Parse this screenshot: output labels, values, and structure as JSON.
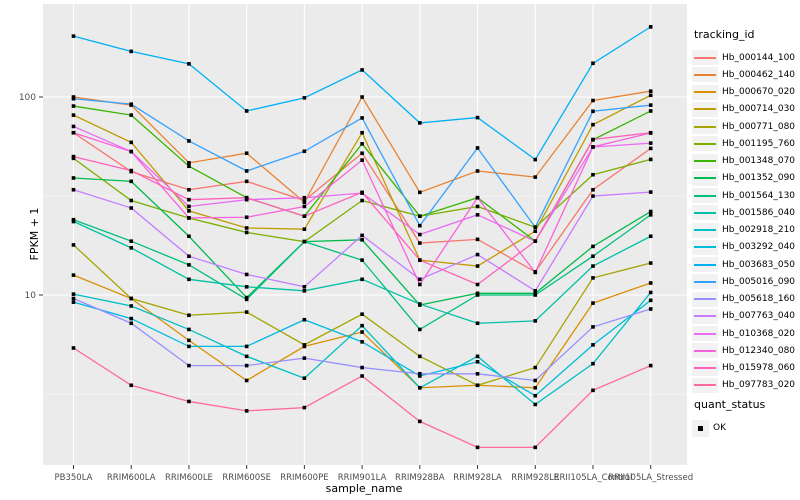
{
  "figure": {
    "background": "#FFFFFF",
    "panel_background": "#EBEBEB",
    "grid_color": "#FFFFFF",
    "tick_label_color": "#4D4D4D"
  },
  "axes": {
    "y_title": "FPKM + 1",
    "x_title": "sample_name",
    "y_tick_labels": [
      "100",
      "10"
    ]
  },
  "legend": {
    "tracking_title": "tracking_id",
    "quant_title": "quant_status",
    "quant_items": [
      {
        "label": "OK",
        "marker": "black-square"
      }
    ]
  },
  "chart_data": {
    "type": "line",
    "title": "",
    "xlabel": "sample_name",
    "ylabel": "FPKM + 1",
    "y_scale": "log10",
    "ylim": [
      1.5,
      320
    ],
    "y_major_ticks": [
      100,
      10
    ],
    "y_minor_ticks": [
      31.6,
      3.16
    ],
    "grid": true,
    "legend_position": "right",
    "point_marker": {
      "shape": "square",
      "color": "#000000",
      "meaning": "quant_status OK"
    },
    "categories": [
      "PB350LA",
      "RRIM600LA",
      "RRIM600LE",
      "RRIM600SE",
      "RRIM600PE",
      "RRIM901LA",
      "RRIM928BA",
      "RRIM928LA",
      "RRIM928LE",
      "RRII105LA_Control",
      "RRII105LA_Stressed"
    ],
    "series": [
      {
        "name": "Hb_000144_100",
        "color": "#F8766D",
        "values": [
          66,
          42,
          34,
          37.5,
          30,
          52,
          18.3,
          19.1,
          13.1,
          34,
          55
        ]
      },
      {
        "name": "Hb_000462_140",
        "color": "#EA8331",
        "values": [
          100,
          91,
          46.5,
          52,
          29.4,
          100,
          33,
          42.3,
          39.4,
          96,
          107
        ]
      },
      {
        "name": "Hb_000670_020",
        "color": "#D89000",
        "values": [
          12.6,
          9.6,
          5.9,
          3.7,
          5.5,
          6.5,
          3.4,
          3.5,
          3.4,
          9.1,
          11.5
        ]
      },
      {
        "name": "Hb_000714_030",
        "color": "#C09B00",
        "values": [
          81,
          59,
          26.6,
          21.8,
          21.5,
          66,
          15,
          14,
          21,
          72.5,
          102
        ]
      },
      {
        "name": "Hb_000771_080",
        "color": "#A3A500",
        "values": [
          17.9,
          9.6,
          7.9,
          8.2,
          5.6,
          8,
          4.9,
          3.5,
          4.3,
          12.2,
          14.5
        ]
      },
      {
        "name": "Hb_001195_760",
        "color": "#7CAE00",
        "values": [
          49,
          30,
          24.5,
          20.7,
          18.6,
          30,
          25,
          28,
          22,
          40.5,
          48.4
        ]
      },
      {
        "name": "Hb_001348_070",
        "color": "#39B600",
        "values": [
          90,
          81,
          44.7,
          31,
          25,
          58,
          25,
          31,
          18.7,
          60.8,
          85
        ]
      },
      {
        "name": "Hb_001352_090",
        "color": "#00BB4E",
        "values": [
          39,
          37.5,
          19.8,
          9.7,
          18.6,
          19,
          8.9,
          10.2,
          10.2,
          17.6,
          26.4
        ]
      },
      {
        "name": "Hb_001564_130",
        "color": "#00BF7D",
        "values": [
          24,
          18.7,
          14.2,
          9.5,
          18.6,
          15,
          6.7,
          10,
          10,
          15.7,
          25.4
        ]
      },
      {
        "name": "Hb_001586_040",
        "color": "#00C1A3",
        "values": [
          23.5,
          17.3,
          12,
          11,
          10.5,
          12,
          9,
          7.2,
          7.4,
          14,
          19.8
        ]
      },
      {
        "name": "Hb_002918_210",
        "color": "#00BFC4",
        "values": [
          10.1,
          8.8,
          6.7,
          4.9,
          3.8,
          7,
          3.4,
          4.9,
          2.8,
          4.5,
          10.3
        ]
      },
      {
        "name": "Hb_003292_040",
        "color": "#00BAE0",
        "values": [
          9.2,
          7.6,
          5.5,
          5.5,
          7.5,
          5.8,
          3.9,
          4.6,
          3.1,
          5.6,
          9.4
        ]
      },
      {
        "name": "Hb_003683_050",
        "color": "#00B0F6",
        "values": [
          203,
          170,
          147,
          85,
          99,
          137,
          74,
          78.7,
          48.3,
          148,
          226
        ]
      },
      {
        "name": "Hb_005016_090",
        "color": "#35A2FF",
        "values": [
          98,
          92,
          60,
          42.3,
          53.2,
          78.4,
          22.4,
          55.3,
          22,
          84.7,
          91
        ]
      },
      {
        "name": "Hb_005618_160",
        "color": "#9590FF",
        "values": [
          9.6,
          7.2,
          4.4,
          4.4,
          4.8,
          4.3,
          4.0,
          4.0,
          3.7,
          6.9,
          8.5
        ]
      },
      {
        "name": "Hb_007763_040",
        "color": "#C77CFF",
        "values": [
          34,
          27.5,
          15.7,
          12.7,
          11,
          20,
          12,
          16,
          10.5,
          31.6,
          33.1
        ]
      },
      {
        "name": "Hb_010368_020",
        "color": "#E76BF3",
        "values": [
          71,
          53,
          28,
          30.3,
          31,
          32.7,
          20.2,
          25.4,
          18.7,
          55.9,
          58.5
        ]
      },
      {
        "name": "Hb_012340_080",
        "color": "#FA62DB",
        "values": [
          66,
          53,
          24.5,
          24.7,
          28,
          48,
          11.3,
          31,
          13,
          56,
          65.8
        ]
      },
      {
        "name": "Hb_015978_060",
        "color": "#FF62BC",
        "values": [
          50,
          42.5,
          30.3,
          31,
          25,
          33,
          15,
          11.3,
          18.7,
          61,
          66
        ]
      },
      {
        "name": "Hb_097783_020",
        "color": "#FF6A98",
        "values": [
          5.4,
          3.5,
          2.9,
          2.6,
          2.7,
          3.9,
          2.3,
          1.7,
          1.7,
          3.3,
          4.4
        ]
      }
    ]
  }
}
